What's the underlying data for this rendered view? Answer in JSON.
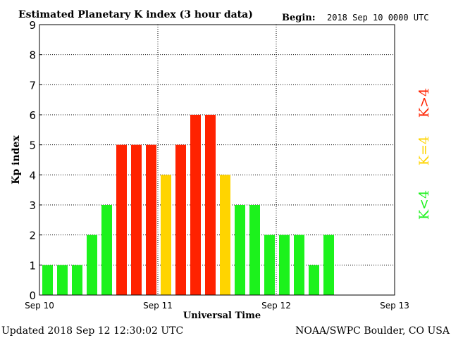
{
  "header": {
    "title": "Estimated Planetary K index (3 hour data)",
    "begin_label": "Begin:",
    "begin_value": "2018 Sep 10 0000 UTC"
  },
  "footer": {
    "updated": "Updated 2018 Sep 12 12:30:02 UTC",
    "source": "NOAA/SWPC Boulder, CO USA"
  },
  "legend": {
    "greater": "K>4",
    "equal": "K=4",
    "less": "K<4"
  },
  "colors": {
    "less": "#1cf21c",
    "equal": "#ffd400",
    "greater": "#ff2200",
    "grid": "#000000",
    "text": "#000000"
  },
  "chart_data": {
    "type": "bar",
    "title": "Estimated Planetary K index (3 hour data)",
    "xlabel": "Universal Time",
    "ylabel": "Kp index",
    "ylim": [
      0,
      9
    ],
    "yticks": [
      "0",
      "1",
      "2",
      "3",
      "4",
      "5",
      "6",
      "7",
      "8",
      "9"
    ],
    "xtick_labels": [
      "Sep 10",
      "Sep 11",
      "Sep 12",
      "Sep 13"
    ],
    "interval_hours": 3,
    "values": [
      1,
      1,
      1,
      2,
      3,
      5,
      5,
      5,
      4,
      5,
      6,
      6,
      4,
      3,
      3,
      2,
      2,
      2,
      1,
      2
    ],
    "slots_total": 24,
    "grid": true
  }
}
